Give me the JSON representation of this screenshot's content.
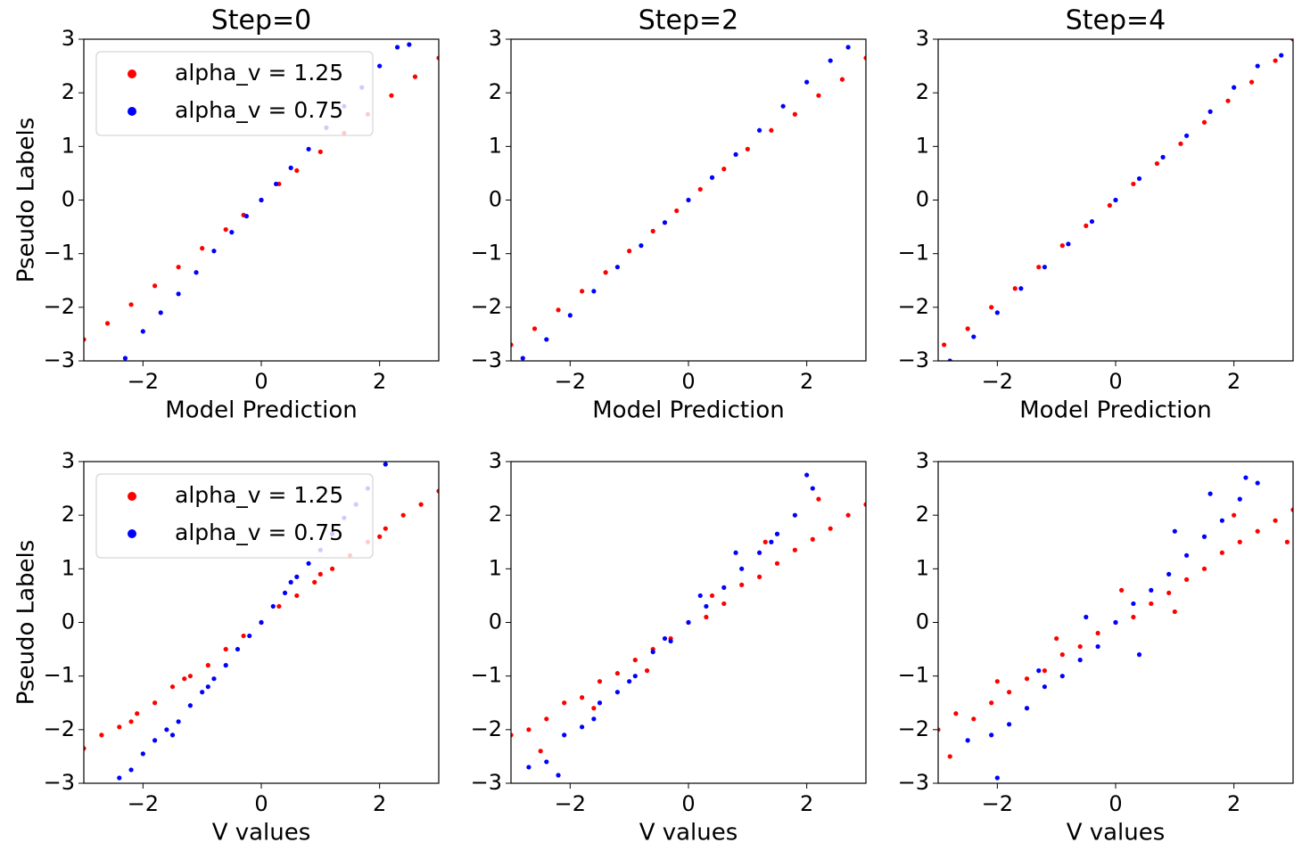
{
  "chart_data": [
    {
      "type": "scatter",
      "title": "Step=0",
      "xlabel": "Model Prediction",
      "ylabel": "Pseudo Labels",
      "legend": "upper left",
      "xlim": [
        -3,
        3
      ],
      "ylim": [
        -3,
        3
      ],
      "xticks": [
        {
          "value": -2,
          "label": "−2"
        },
        0,
        2
      ],
      "yticks": [
        {
          "value": -3,
          "label": "−3"
        },
        {
          "value": -2,
          "label": "−2"
        },
        {
          "value": -1,
          "label": "−1"
        },
        0,
        1,
        2,
        3
      ],
      "series": [
        {
          "name": "alpha_v = 1.25",
          "color": "#ff0000",
          "x": [
            -3,
            -2.6,
            -2.2,
            -1.8,
            -1.4,
            -1,
            -0.6,
            -0.3,
            0,
            0.3,
            0.6,
            1,
            1.4,
            1.8,
            2.2,
            2.6,
            3
          ],
          "y": [
            -2.6,
            -2.3,
            -1.95,
            -1.6,
            -1.25,
            -0.9,
            -0.55,
            -0.28,
            0,
            0.3,
            0.55,
            0.9,
            1.25,
            1.6,
            1.95,
            2.3,
            2.65
          ]
        },
        {
          "name": "alpha_v = 0.75",
          "color": "#0000ff",
          "x": [
            -2.3,
            -2,
            -1.7,
            -1.4,
            -1.1,
            -0.8,
            -0.5,
            -0.25,
            0,
            0.25,
            0.5,
            0.8,
            1.1,
            1.4,
            1.7,
            2,
            2.3,
            2.5
          ],
          "y": [
            -2.95,
            -2.45,
            -2.1,
            -1.75,
            -1.35,
            -0.95,
            -0.6,
            -0.3,
            0,
            0.3,
            0.6,
            0.95,
            1.35,
            1.75,
            2.1,
            2.5,
            2.85,
            2.9
          ]
        }
      ]
    },
    {
      "type": "scatter",
      "title": "Step=2",
      "xlabel": "Model Prediction",
      "xlim": [
        -3,
        3
      ],
      "ylim": [
        -3,
        3
      ],
      "xticks": [
        {
          "value": -2,
          "label": "−2"
        },
        0,
        2
      ],
      "yticks": [
        {
          "value": -3,
          "label": "−3"
        },
        {
          "value": -2,
          "label": "−2"
        },
        {
          "value": -1,
          "label": "−1"
        },
        0,
        1,
        2,
        3
      ],
      "series": [
        {
          "color": "#ff0000",
          "x": [
            -3,
            -2.6,
            -2.2,
            -1.8,
            -1.4,
            -1,
            -0.6,
            -0.2,
            0.2,
            0.6,
            1,
            1.4,
            1.8,
            2.2,
            2.6,
            3
          ],
          "y": [
            -2.7,
            -2.4,
            -2.05,
            -1.7,
            -1.35,
            -0.95,
            -0.58,
            -0.2,
            0.2,
            0.58,
            0.95,
            1.3,
            1.6,
            1.95,
            2.25,
            2.65
          ]
        },
        {
          "color": "#0000ff",
          "x": [
            -2.8,
            -2.4,
            -2,
            -1.6,
            -1.2,
            -0.8,
            -0.4,
            0,
            0.4,
            0.8,
            1.2,
            1.6,
            2,
            2.4,
            2.7
          ],
          "y": [
            -2.95,
            -2.6,
            -2.15,
            -1.7,
            -1.25,
            -0.85,
            -0.42,
            0,
            0.42,
            0.85,
            1.3,
            1.75,
            2.2,
            2.6,
            2.85
          ]
        }
      ]
    },
    {
      "type": "scatter",
      "title": "Step=4",
      "xlabel": "Model Prediction",
      "xlim": [
        -3,
        3
      ],
      "ylim": [
        -3,
        3
      ],
      "xticks": [
        {
          "value": -2,
          "label": "−2"
        },
        0,
        2
      ],
      "yticks": [
        {
          "value": -3,
          "label": "−3"
        },
        {
          "value": -2,
          "label": "−2"
        },
        {
          "value": -1,
          "label": "−1"
        },
        0,
        1,
        2,
        3
      ],
      "series": [
        {
          "color": "#ff0000",
          "x": [
            -2.9,
            -2.5,
            -2.1,
            -1.7,
            -1.3,
            -0.9,
            -0.5,
            -0.1,
            0.3,
            0.7,
            1.1,
            1.5,
            1.9,
            2.3,
            2.7,
            3
          ],
          "y": [
            -2.7,
            -2.4,
            -2.0,
            -1.65,
            -1.25,
            -0.85,
            -0.48,
            -0.1,
            0.3,
            0.68,
            1.05,
            1.45,
            1.85,
            2.2,
            2.6,
            3
          ]
        },
        {
          "color": "#0000ff",
          "x": [
            -2.8,
            -2.4,
            -2,
            -1.6,
            -1.2,
            -0.8,
            -0.4,
            0,
            0.4,
            0.8,
            1.2,
            1.6,
            2,
            2.4,
            2.8
          ],
          "y": [
            -3,
            -2.55,
            -2.1,
            -1.65,
            -1.25,
            -0.82,
            -0.4,
            0,
            0.4,
            0.8,
            1.2,
            1.65,
            2.1,
            2.5,
            2.7
          ]
        }
      ]
    },
    {
      "type": "scatter",
      "xlabel": "V values",
      "ylabel": "Pseudo Labels",
      "legend": "upper left",
      "xlim": [
        -3,
        3
      ],
      "ylim": [
        -3,
        3
      ],
      "xticks": [
        {
          "value": -2,
          "label": "−2"
        },
        0,
        2
      ],
      "yticks": [
        {
          "value": -3,
          "label": "−3"
        },
        {
          "value": -2,
          "label": "−2"
        },
        {
          "value": -1,
          "label": "−1"
        },
        0,
        1,
        2,
        3
      ],
      "series": [
        {
          "name": "alpha_v = 1.25",
          "color": "#ff0000",
          "x": [
            -3,
            -2.7,
            -2.4,
            -2.1,
            -1.8,
            -1.5,
            -1.2,
            -0.9,
            -0.6,
            -0.3,
            0,
            0.3,
            0.6,
            0.9,
            1.2,
            1.5,
            1.8,
            2.1,
            2.4,
            2.7,
            3,
            -2.2,
            -1.3,
            1.0,
            2.0
          ],
          "y": [
            -2.35,
            -2.1,
            -1.95,
            -1.7,
            -1.5,
            -1.2,
            -1.0,
            -0.8,
            -0.5,
            -0.25,
            0,
            0.3,
            0.5,
            0.75,
            1.0,
            1.25,
            1.5,
            1.75,
            2.0,
            2.2,
            2.45,
            -1.85,
            -1.05,
            0.9,
            1.6
          ]
        },
        {
          "name": "alpha_v = 0.75",
          "color": "#0000ff",
          "x": [
            -2.4,
            -2.2,
            -2,
            -1.8,
            -1.6,
            -1.4,
            -1.2,
            -1,
            -0.8,
            -0.6,
            -0.4,
            -0.2,
            0,
            0.2,
            0.4,
            0.6,
            0.8,
            1,
            1.2,
            1.4,
            1.6,
            1.8,
            2.1,
            -1.5,
            -0.9,
            0.5
          ],
          "y": [
            -2.9,
            -2.75,
            -2.45,
            -2.2,
            -2.0,
            -1.85,
            -1.55,
            -1.3,
            -1.05,
            -0.8,
            -0.5,
            -0.25,
            0,
            0.3,
            0.55,
            0.85,
            1.1,
            1.35,
            1.65,
            1.95,
            2.2,
            2.5,
            2.95,
            -2.1,
            -1.2,
            0.75
          ]
        }
      ]
    },
    {
      "type": "scatter",
      "xlabel": "V values",
      "xlim": [
        -3,
        3
      ],
      "ylim": [
        -3,
        3
      ],
      "xticks": [
        {
          "value": -2,
          "label": "−2"
        },
        0,
        2
      ],
      "yticks": [
        {
          "value": -3,
          "label": "−3"
        },
        {
          "value": -2,
          "label": "−2"
        },
        {
          "value": -1,
          "label": "−1"
        },
        0,
        1,
        2,
        3
      ],
      "series": [
        {
          "color": "#ff0000",
          "x": [
            -3,
            -2.7,
            -2.4,
            -2.1,
            -1.8,
            -1.5,
            -1.2,
            -0.9,
            -0.6,
            -0.3,
            0,
            0.3,
            0.6,
            0.9,
            1.2,
            1.5,
            1.8,
            2.1,
            2.4,
            2.7,
            3,
            -2.5,
            -1.6,
            -0.7,
            0.4,
            1.3,
            2.2
          ],
          "y": [
            -2.1,
            -2.0,
            -1.8,
            -1.5,
            -1.4,
            -1.1,
            -0.95,
            -0.7,
            -0.5,
            -0.3,
            0,
            0.1,
            0.35,
            0.7,
            0.85,
            1.1,
            1.35,
            1.55,
            1.75,
            2.0,
            2.2,
            -2.4,
            -1.6,
            -0.9,
            0.5,
            1.5,
            2.3
          ]
        },
        {
          "color": "#0000ff",
          "x": [
            -2.7,
            -2.4,
            -2.1,
            -1.8,
            -1.5,
            -1.2,
            -0.9,
            -0.6,
            -0.3,
            0,
            0.3,
            0.6,
            0.9,
            1.2,
            1.5,
            1.8,
            2.1,
            -2.2,
            -1.6,
            -1,
            -0.4,
            0.2,
            0.8,
            1.4,
            2.0
          ],
          "y": [
            -2.7,
            -2.6,
            -2.1,
            -1.95,
            -1.5,
            -1.3,
            -1.0,
            -0.55,
            -0.35,
            0,
            0.3,
            0.65,
            1.0,
            1.3,
            1.65,
            2.0,
            2.5,
            -2.85,
            -1.8,
            -1.1,
            -0.3,
            0.5,
            1.3,
            1.5,
            2.75
          ]
        }
      ]
    },
    {
      "type": "scatter",
      "xlabel": "V values",
      "xlim": [
        -3,
        3
      ],
      "ylim": [
        -3,
        3
      ],
      "xticks": [
        {
          "value": -2,
          "label": "−2"
        },
        0,
        2
      ],
      "yticks": [
        {
          "value": -3,
          "label": "−3"
        },
        {
          "value": -2,
          "label": "−2"
        },
        {
          "value": -1,
          "label": "−1"
        },
        0,
        1,
        2,
        3
      ],
      "series": [
        {
          "color": "#ff0000",
          "x": [
            -3,
            -2.7,
            -2.4,
            -2.1,
            -1.8,
            -1.5,
            -1.2,
            -0.9,
            -0.6,
            -0.3,
            0,
            0.3,
            0.6,
            0.9,
            1.2,
            1.5,
            1.8,
            2.1,
            2.4,
            2.7,
            3,
            -2.8,
            -2.0,
            -1.0,
            0.1,
            1.0,
            2.0,
            2.9
          ],
          "y": [
            -2.0,
            -1.7,
            -1.8,
            -1.5,
            -1.3,
            -1.05,
            -0.9,
            -0.6,
            -0.45,
            -0.2,
            0,
            0.1,
            0.35,
            0.55,
            0.8,
            1.0,
            1.3,
            1.5,
            1.7,
            1.9,
            2.1,
            -2.5,
            -1.1,
            -0.3,
            0.6,
            0.2,
            2.0,
            1.5
          ]
        },
        {
          "color": "#0000ff",
          "x": [
            -2.5,
            -2.1,
            -1.8,
            -1.5,
            -1.2,
            -0.9,
            -0.6,
            -0.3,
            0,
            0.3,
            0.6,
            0.9,
            1.2,
            1.5,
            1.8,
            2.1,
            2.4,
            -2.0,
            -1.3,
            -0.5,
            0.4,
            1.0,
            1.6,
            2.2
          ],
          "y": [
            -2.2,
            -2.1,
            -1.9,
            -1.6,
            -1.2,
            -1.0,
            -0.7,
            -0.45,
            0,
            0.35,
            0.6,
            0.9,
            1.25,
            1.6,
            1.9,
            2.3,
            2.6,
            -2.9,
            -0.9,
            0.1,
            -0.6,
            1.7,
            2.4,
            2.7
          ]
        }
      ]
    }
  ]
}
